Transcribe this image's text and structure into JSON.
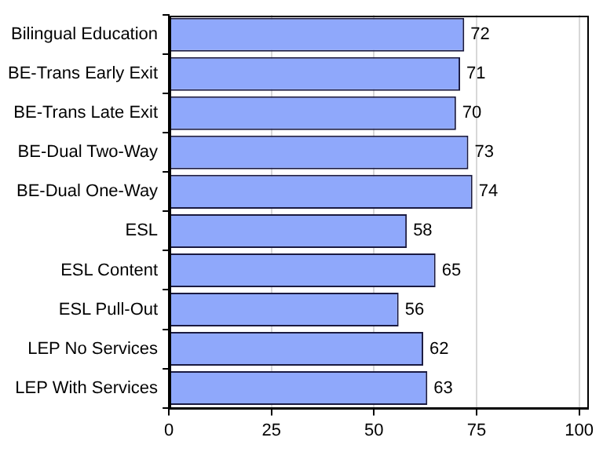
{
  "chart_data": {
    "type": "bar",
    "orientation": "horizontal",
    "categories": [
      "Bilingual Education",
      "BE-Trans Early Exit",
      "BE-Trans Late Exit",
      "BE-Dual Two-Way",
      "BE-Dual One-Way",
      "ESL",
      "ESL Content",
      "ESL Pull-Out",
      "LEP No Services",
      "LEP With Services"
    ],
    "values": [
      72,
      71,
      70,
      73,
      74,
      58,
      65,
      56,
      62,
      63
    ],
    "color": "#8fa8fb",
    "xlim": [
      0,
      102
    ],
    "xticks": [
      0,
      25,
      50,
      75,
      100
    ],
    "grid": "x",
    "data_labels": true,
    "legend": false
  }
}
